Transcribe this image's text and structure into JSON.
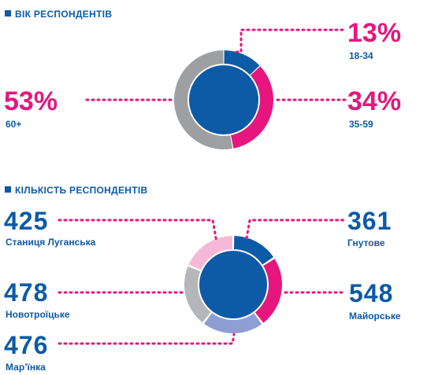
{
  "chart_data": [
    {
      "type": "pie",
      "title": "ВІК РЕСПОНДЕНТІВ",
      "slices": [
        {
          "label": "18-34",
          "display": "13%",
          "value": 13,
          "color": "#0d5aa7"
        },
        {
          "label": "35-59",
          "display": "34%",
          "value": 34,
          "color": "#e6167e"
        },
        {
          "label": "60+",
          "display": "53%",
          "value": 53,
          "color": "#9d9fa2"
        }
      ]
    },
    {
      "type": "pie",
      "title": "КІЛЬКІСТЬ РЕСПОНДЕНТІВ",
      "slices": [
        {
          "label": "Гнутове",
          "display": "361",
          "value": 361,
          "color": "#0d5aa7"
        },
        {
          "label": "Майорське",
          "display": "548",
          "value": 548,
          "color": "#e6167e"
        },
        {
          "label": "Мар’їнка",
          "display": "476",
          "value": 476,
          "color": "#8e9ed4"
        },
        {
          "label": "Новотроїцьке",
          "display": "478",
          "value": 478,
          "color": "#b4b6b9"
        },
        {
          "label": "Станиця Луганська",
          "display": "425",
          "value": 425,
          "color": "#f5b9d7"
        }
      ]
    }
  ],
  "colors": {
    "blue": "#0d5aa7",
    "magenta": "#e6167e",
    "center": "#0d5aa7"
  }
}
